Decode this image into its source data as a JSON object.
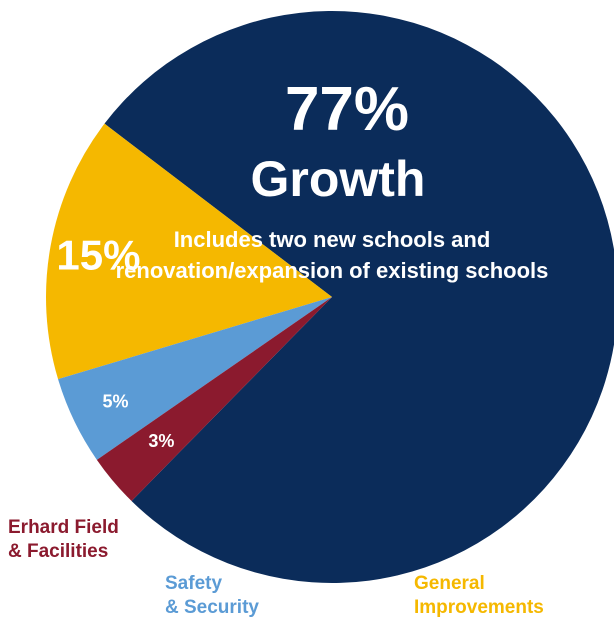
{
  "chart_data": {
    "type": "pie",
    "slices": [
      {
        "value": 77,
        "pct_label": "77%",
        "title_line": "Growth",
        "desc_lines": [
          "Includes two new schools and",
          "renovation/expansion of existing schools"
        ],
        "color": "#0b2c5a",
        "label_color": "#ffffff"
      },
      {
        "value": 15,
        "pct_label": "15%",
        "color": "#f5b800",
        "label_color": "#ffffff",
        "name_lines": [
          "General",
          "Improvements"
        ],
        "name_color": "#f5b800"
      },
      {
        "value": 5,
        "pct_label": "5%",
        "color": "#5b9bd5",
        "label_color": "#ffffff",
        "name_lines": [
          "Safety",
          "& Security"
        ],
        "name_color": "#5b9bd5"
      },
      {
        "value": 3,
        "pct_label": "3%",
        "color": "#8b1a2e",
        "label_color": "#ffffff",
        "name_lines": [
          "Erhard Field",
          "& Facilities"
        ],
        "name_color": "#8b1a2e"
      }
    ]
  }
}
